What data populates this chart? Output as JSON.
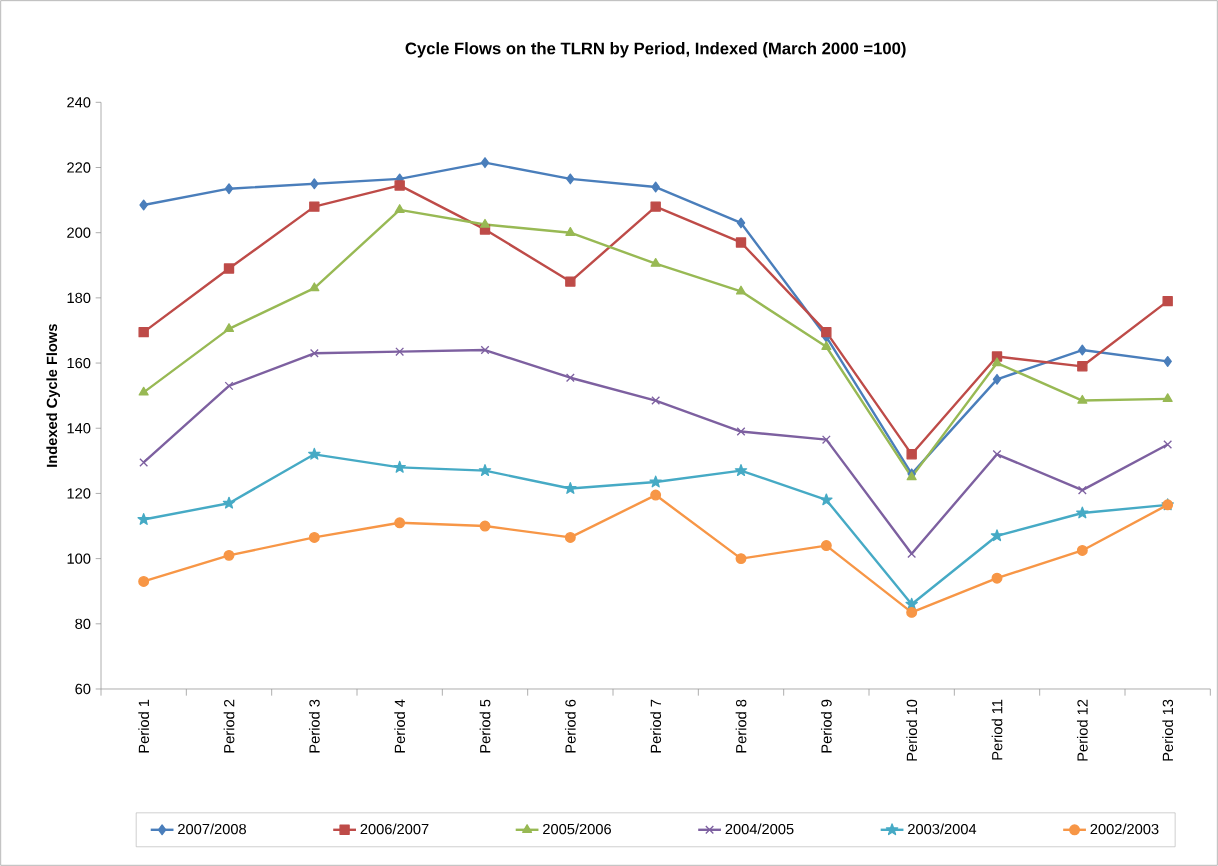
{
  "chart_data": {
    "type": "line",
    "title": "Cycle Flows on the TLRN by Period, Indexed (March 2000 =100)",
    "ylabel": "Indexed Cycle Flows",
    "categories": [
      "Period 1",
      "Period 2",
      "Period 3",
      "Period 4",
      "Period 5",
      "Period 6",
      "Period 7",
      "Period 8",
      "Period 9",
      "Period 10",
      "Period 11",
      "Period 12",
      "Period 13"
    ],
    "ylim": [
      60,
      240
    ],
    "yticks": [
      60,
      80,
      100,
      120,
      140,
      160,
      180,
      200,
      220,
      240
    ],
    "grid": false,
    "legend": "bottom",
    "line_style": "solid",
    "series": [
      {
        "name": "2007/2008",
        "color": "#4a7ebb",
        "marker": "diamond",
        "values": [
          208.5,
          213.5,
          215,
          216.5,
          221.5,
          216.5,
          214,
          203,
          168,
          126,
          155,
          164,
          160.5
        ]
      },
      {
        "name": "2006/2007",
        "color": "#be4b48",
        "marker": "square",
        "values": [
          169.5,
          189,
          208,
          214.5,
          201,
          185,
          208,
          197,
          169.5,
          132,
          162,
          159,
          179
        ]
      },
      {
        "name": "2005/2006",
        "color": "#98b954",
        "marker": "triangle",
        "values": [
          151,
          170.5,
          183,
          207,
          202.5,
          200,
          190.5,
          182,
          165,
          125,
          160,
          148.5,
          149
        ]
      },
      {
        "name": "2004/2005",
        "color": "#7d60a0",
        "marker": "cross",
        "values": [
          129.5,
          153,
          163,
          163.5,
          164,
          155.5,
          148.5,
          139,
          136.5,
          101.5,
          132,
          121,
          135
        ]
      },
      {
        "name": "2003/2004",
        "color": "#46aac5",
        "marker": "star",
        "values": [
          112,
          117,
          132,
          128,
          127,
          121.5,
          123.5,
          127,
          118,
          86,
          107,
          114,
          116.5
        ]
      },
      {
        "name": "2002/2003",
        "color": "#f79646",
        "marker": "circle",
        "values": [
          93,
          101,
          106.5,
          111,
          110,
          106.5,
          119.5,
          100,
          104,
          83.5,
          94,
          102.5,
          116.5
        ]
      }
    ]
  }
}
